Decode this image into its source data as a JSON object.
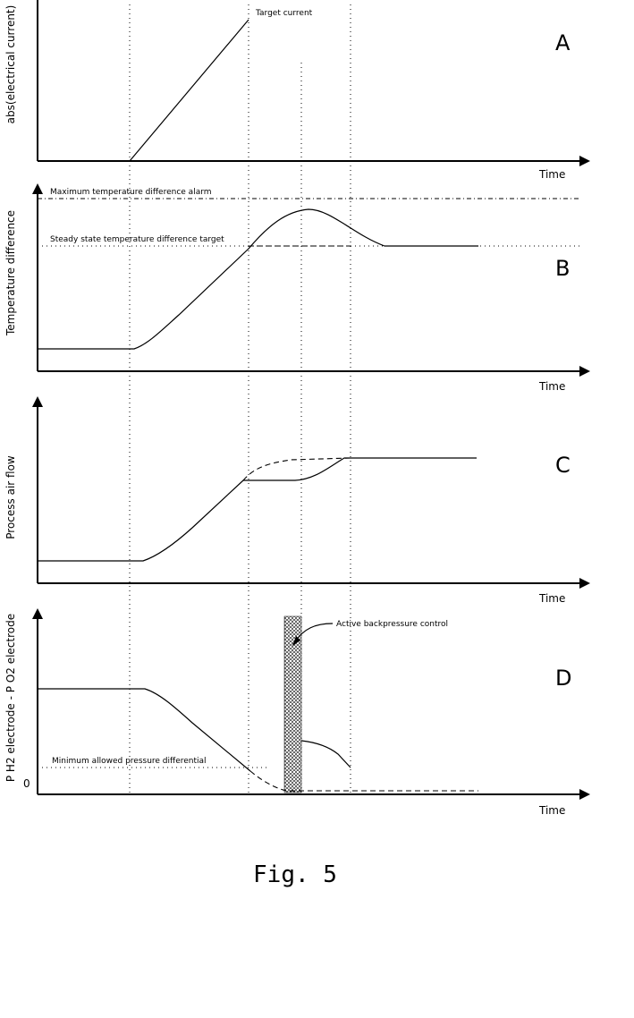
{
  "figure": {
    "caption": "Fig. 5",
    "x_axis_label": "Time",
    "zero_tick": "0"
  },
  "panels": [
    {
      "id": "A",
      "ylabel": "abs(electrical current)",
      "annotations": [
        "Target current"
      ]
    },
    {
      "id": "B",
      "ylabel": "Temperature difference",
      "annotations": [
        "Maximum temperature difference alarm",
        "Steady state temperature difference target"
      ]
    },
    {
      "id": "C",
      "ylabel": "Process air flow",
      "annotations": []
    },
    {
      "id": "D",
      "ylabel": "P H2 electrode - P O2 electrode",
      "annotations": [
        "Active backpressure control",
        "Minimum allowed pressure differential"
      ]
    }
  ]
}
